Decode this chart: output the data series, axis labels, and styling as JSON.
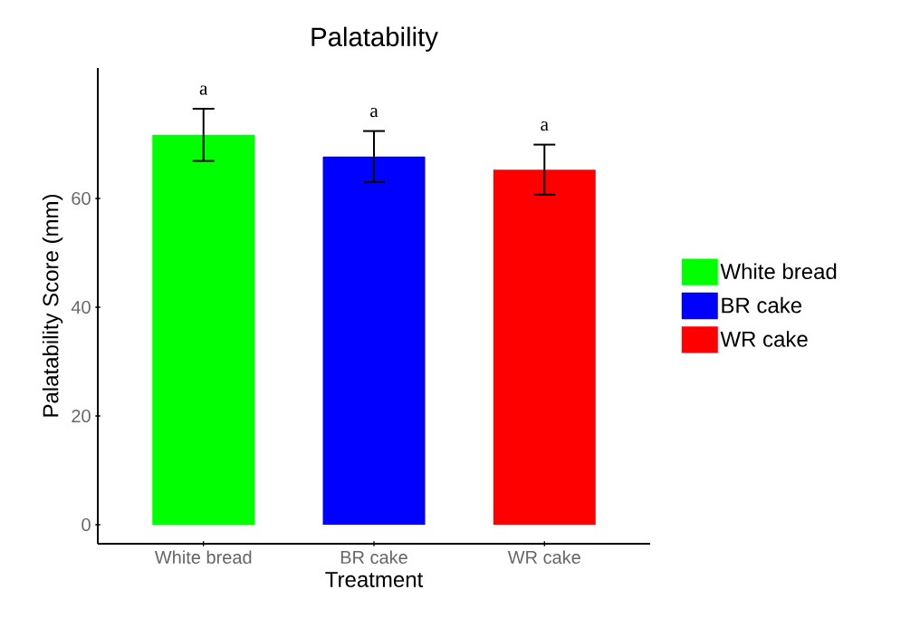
{
  "chart_data": {
    "type": "bar",
    "title": "Palatability",
    "xlabel": "Treatment",
    "ylabel": "Palatability Score (mm)",
    "categories": [
      "White bread",
      "BR cake",
      "WR cake"
    ],
    "series": [
      {
        "name": "White bread",
        "color": "#00ff00",
        "values": [
          71.7,
          null,
          null
        ],
        "errors": [
          4.8,
          null,
          null
        ]
      },
      {
        "name": "BR cake",
        "color": "#0000ff",
        "values": [
          null,
          67.7,
          null
        ],
        "errors": [
          null,
          4.7,
          null
        ]
      },
      {
        "name": "WR cake",
        "color": "#ff0000",
        "values": [
          null,
          null,
          65.3
        ],
        "errors": [
          null,
          null,
          4.6
        ]
      }
    ],
    "ylim": [
      -3.5,
      84
    ],
    "yticks": [
      0,
      20,
      40,
      60
    ],
    "grid": false,
    "legend": "right",
    "annotations": [
      "a",
      "a",
      "a"
    ]
  }
}
